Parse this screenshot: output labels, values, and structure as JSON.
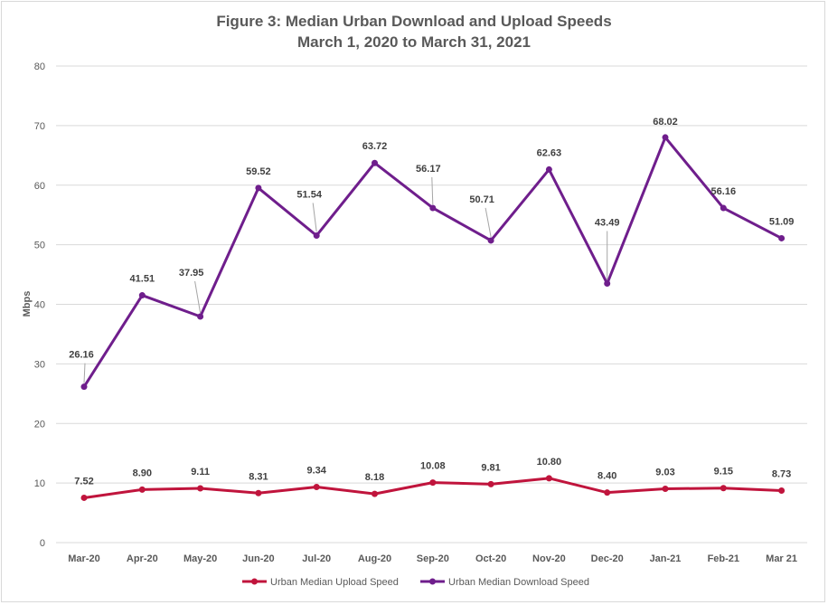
{
  "chart_data": {
    "type": "line",
    "title": "Figure 3: Median Urban Download and Upload Speeds",
    "subtitle": "March 1, 2020 to March 31, 2021",
    "xlabel": "",
    "ylabel": "Mbps",
    "ylim": [
      0,
      80
    ],
    "yticks": [
      0,
      10,
      20,
      30,
      40,
      50,
      60,
      70,
      80
    ],
    "grid": true,
    "legend_position": "bottom",
    "categories": [
      "Mar-20",
      "Apr-20",
      "May-20",
      "Jun-20",
      "Jul-20",
      "Aug-20",
      "Sep-20",
      "Oct-20",
      "Nov-20",
      "Dec-20",
      "Jan-21",
      "Feb-21",
      "Mar 21"
    ],
    "series": [
      {
        "name": "Urban Median Upload Speed",
        "color": "#c0143c",
        "values": [
          7.52,
          8.9,
          9.11,
          8.31,
          9.34,
          8.18,
          10.08,
          9.81,
          10.8,
          8.4,
          9.03,
          9.15,
          8.73
        ],
        "labels": [
          "7.52",
          "8.90",
          "9.11",
          "8.31",
          "9.34",
          "8.18",
          "10.08",
          "9.81",
          "10.80",
          "8.40",
          "9.03",
          "9.15",
          "8.73"
        ]
      },
      {
        "name": "Urban Median Download Speed",
        "color": "#6f1e8c",
        "values": [
          26.16,
          41.51,
          37.95,
          59.52,
          51.54,
          63.72,
          56.17,
          50.71,
          62.63,
          43.49,
          68.02,
          56.16,
          51.09
        ],
        "labels": [
          "26.16",
          "41.51",
          "37.95",
          "59.52",
          "51.54",
          "63.72",
          "56.17",
          "50.71",
          "62.63",
          "43.49",
          "68.02",
          "56.16",
          "51.09"
        ]
      }
    ]
  }
}
